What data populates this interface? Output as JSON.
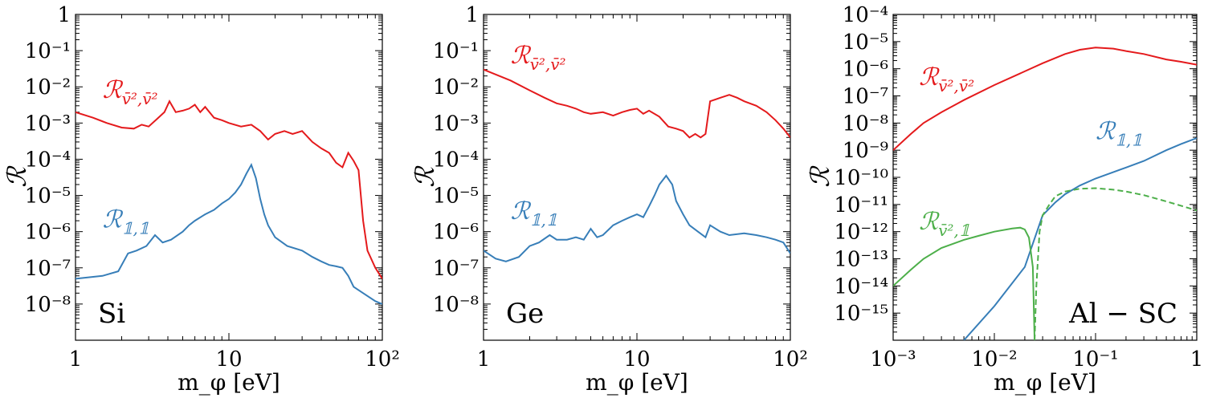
{
  "colors": {
    "red": "#e41a1c",
    "blue": "#377eb8",
    "green": "#4daf4a"
  },
  "chart_data": [
    {
      "type": "line",
      "id": "si",
      "xscale": "log",
      "yscale": "log",
      "xlim": [
        1,
        100
      ],
      "ylim": [
        1e-09,
        1
      ],
      "xlabel": "m_φ [eV]",
      "ylabel": "ℛ",
      "material": "Si",
      "xticks": [
        {
          "v": 1,
          "label": "1"
        },
        {
          "v": 10,
          "label": "10"
        },
        {
          "v": 100,
          "label": "10²"
        }
      ],
      "yticks": [
        {
          "v": 1,
          "label": "1"
        },
        {
          "v": 0.1,
          "label": "10⁻¹"
        },
        {
          "v": 0.01,
          "label": "10⁻²"
        },
        {
          "v": 0.001,
          "label": "10⁻³"
        },
        {
          "v": 0.0001,
          "label": "10⁻⁴"
        },
        {
          "v": 1e-05,
          "label": "10⁻⁵"
        },
        {
          "v": 1e-06,
          "label": "10⁻⁶"
        },
        {
          "v": 1e-07,
          "label": "10⁻⁷"
        },
        {
          "v": 1e-08,
          "label": "10⁻⁸"
        }
      ],
      "annotations": [
        {
          "text": "ℛ v̄²,v̄²",
          "color": "red",
          "x": 1.5,
          "y": 0.005
        },
        {
          "text": "ℛ 𝟙,𝟙",
          "color": "blue",
          "x": 1.5,
          "y": 1.3e-06
        }
      ],
      "series": [
        {
          "name": "ℛ v̄²,v̄²",
          "color": "red",
          "style": "solid",
          "points": [
            [
              1,
              0.002
            ],
            [
              1.3,
              0.0014
            ],
            [
              1.6,
              0.001
            ],
            [
              2,
              0.00075
            ],
            [
              2.4,
              0.0007
            ],
            [
              2.7,
              0.0009
            ],
            [
              3,
              0.0008
            ],
            [
              3.4,
              0.0013
            ],
            [
              3.8,
              0.002
            ],
            [
              4.1,
              0.004
            ],
            [
              4.5,
              0.002
            ],
            [
              5,
              0.0022
            ],
            [
              5.5,
              0.0025
            ],
            [
              6,
              0.0032
            ],
            [
              6.5,
              0.002
            ],
            [
              7,
              0.0028
            ],
            [
              8,
              0.0014
            ],
            [
              9,
              0.0012
            ],
            [
              10,
              0.001
            ],
            [
              12,
              0.0008
            ],
            [
              14,
              0.0009
            ],
            [
              16,
              0.0006
            ],
            [
              18,
              0.00035
            ],
            [
              20,
              0.0005
            ],
            [
              23,
              0.0006
            ],
            [
              26,
              0.0005
            ],
            [
              30,
              0.0006
            ],
            [
              35,
              0.0003
            ],
            [
              40,
              0.0002
            ],
            [
              45,
              0.00015
            ],
            [
              50,
              8e-05
            ],
            [
              55,
              6e-05
            ],
            [
              60,
              0.00015
            ],
            [
              65,
              9e-05
            ],
            [
              70,
              5e-05
            ],
            [
              75,
              2e-06
            ],
            [
              80,
              3e-07
            ],
            [
              90,
              1e-07
            ],
            [
              100,
              5e-08
            ]
          ]
        },
        {
          "name": "ℛ 𝟙,𝟙",
          "color": "blue",
          "style": "solid",
          "points": [
            [
              1,
              5e-08
            ],
            [
              1.5,
              6e-08
            ],
            [
              1.9,
              8e-08
            ],
            [
              2.2,
              2.5e-07
            ],
            [
              2.5,
              3e-07
            ],
            [
              2.9,
              4e-07
            ],
            [
              3.3,
              8e-07
            ],
            [
              3.7,
              5e-07
            ],
            [
              4.2,
              6e-07
            ],
            [
              5,
              1e-06
            ],
            [
              5.5,
              1.5e-06
            ],
            [
              6,
              2e-06
            ],
            [
              7,
              3e-06
            ],
            [
              8,
              4e-06
            ],
            [
              9,
              6e-06
            ],
            [
              10,
              8e-06
            ],
            [
              11,
              1.2e-05
            ],
            [
              12,
              2e-05
            ],
            [
              13,
              4e-05
            ],
            [
              14,
              7e-05
            ],
            [
              15,
              3e-05
            ],
            [
              16,
              8e-06
            ],
            [
              17,
              3e-06
            ],
            [
              18,
              1.5e-06
            ],
            [
              20,
              7e-07
            ],
            [
              24,
              4e-07
            ],
            [
              30,
              3e-07
            ],
            [
              35,
              2e-07
            ],
            [
              40,
              1.5e-07
            ],
            [
              45,
              1.2e-07
            ],
            [
              50,
              1.1e-07
            ],
            [
              55,
              1e-07
            ],
            [
              60,
              6e-08
            ],
            [
              65,
              3e-08
            ],
            [
              75,
              2e-08
            ],
            [
              90,
              1.2e-08
            ],
            [
              100,
              1e-08
            ]
          ]
        }
      ]
    },
    {
      "type": "line",
      "id": "ge",
      "xscale": "log",
      "yscale": "log",
      "xlim": [
        1,
        100
      ],
      "ylim": [
        1e-09,
        1
      ],
      "xlabel": "m_φ [eV]",
      "ylabel": "ℛ",
      "material": "Ge",
      "xticks": [
        {
          "v": 1,
          "label": "1"
        },
        {
          "v": 10,
          "label": "10"
        },
        {
          "v": 100,
          "label": "10²"
        }
      ],
      "yticks": [
        {
          "v": 1,
          "label": "1"
        },
        {
          "v": 0.1,
          "label": "10⁻¹"
        },
        {
          "v": 0.01,
          "label": "10⁻²"
        },
        {
          "v": 0.001,
          "label": "10⁻³"
        },
        {
          "v": 0.0001,
          "label": "10⁻⁴"
        },
        {
          "v": 1e-05,
          "label": "10⁻⁵"
        },
        {
          "v": 1e-06,
          "label": "10⁻⁶"
        },
        {
          "v": 1e-07,
          "label": "10⁻⁷"
        },
        {
          "v": 1e-08,
          "label": "10⁻⁸"
        }
      ],
      "annotations": [
        {
          "text": "ℛ v̄²,v̄²",
          "color": "red",
          "x": 1.5,
          "y": 0.045
        },
        {
          "text": "ℛ 𝟙,𝟙",
          "color": "blue",
          "x": 1.5,
          "y": 2.2e-06
        }
      ],
      "series": [
        {
          "name": "ℛ v̄²,v̄²",
          "color": "red",
          "style": "solid",
          "points": [
            [
              1,
              0.03
            ],
            [
              1.5,
              0.015
            ],
            [
              2,
              0.008
            ],
            [
              2.5,
              0.005
            ],
            [
              3,
              0.0035
            ],
            [
              3.5,
              0.003
            ],
            [
              4,
              0.0025
            ],
            [
              4.5,
              0.002
            ],
            [
              5,
              0.0018
            ],
            [
              6,
              0.002
            ],
            [
              7,
              0.0016
            ],
            [
              8,
              0.002
            ],
            [
              9,
              0.0023
            ],
            [
              10,
              0.0025
            ],
            [
              11,
              0.0018
            ],
            [
              12,
              0.0022
            ],
            [
              14,
              0.0015
            ],
            [
              16,
              0.0008
            ],
            [
              18,
              0.0007
            ],
            [
              20,
              0.0006
            ],
            [
              22,
              0.0004
            ],
            [
              24,
              0.0005
            ],
            [
              26,
              0.0004
            ],
            [
              28,
              0.0005
            ],
            [
              30,
              0.004
            ],
            [
              35,
              0.005
            ],
            [
              40,
              0.006
            ],
            [
              45,
              0.005
            ],
            [
              50,
              0.004
            ],
            [
              60,
              0.003
            ],
            [
              70,
              0.002
            ],
            [
              80,
              0.0012
            ],
            [
              90,
              0.0007
            ],
            [
              100,
              0.0004
            ]
          ]
        },
        {
          "name": "ℛ 𝟙,𝟙",
          "color": "blue",
          "style": "solid",
          "points": [
            [
              1,
              3e-07
            ],
            [
              1.2,
              1.8e-07
            ],
            [
              1.4,
              1.5e-07
            ],
            [
              1.7,
              2e-07
            ],
            [
              2,
              4e-07
            ],
            [
              2.3,
              5e-07
            ],
            [
              2.7,
              8e-07
            ],
            [
              3,
              6e-07
            ],
            [
              3.5,
              6e-07
            ],
            [
              4,
              7e-07
            ],
            [
              4.5,
              6e-07
            ],
            [
              5,
              1.2e-06
            ],
            [
              5.5,
              7e-07
            ],
            [
              6,
              8e-07
            ],
            [
              7,
              1.5e-06
            ],
            [
              8,
              2e-06
            ],
            [
              9,
              2.5e-06
            ],
            [
              10,
              3e-06
            ],
            [
              11,
              2.5e-06
            ],
            [
              12,
              5e-06
            ],
            [
              13,
              1e-05
            ],
            [
              14,
              2e-05
            ],
            [
              15.5,
              3.5e-05
            ],
            [
              17,
              2e-05
            ],
            [
              18,
              7e-06
            ],
            [
              20,
              3e-06
            ],
            [
              22,
              1.5e-06
            ],
            [
              25,
              1e-06
            ],
            [
              28,
              7e-07
            ],
            [
              30,
              1.5e-06
            ],
            [
              35,
              1e-06
            ],
            [
              40,
              8e-07
            ],
            [
              50,
              9e-07
            ],
            [
              60,
              8e-07
            ],
            [
              70,
              7e-07
            ],
            [
              80,
              6e-07
            ],
            [
              90,
              5e-07
            ],
            [
              100,
              2.5e-07
            ]
          ]
        }
      ]
    },
    {
      "type": "line",
      "id": "al",
      "xscale": "log",
      "yscale": "log",
      "xlim": [
        0.001,
        1
      ],
      "ylim": [
        1e-16,
        0.0001
      ],
      "xlabel": "m_φ [eV]",
      "ylabel": "ℛ",
      "material": "Al − SC",
      "xticks": [
        {
          "v": 0.001,
          "label": "10⁻³"
        },
        {
          "v": 0.01,
          "label": "10⁻²"
        },
        {
          "v": 0.1,
          "label": "10⁻¹"
        },
        {
          "v": 1,
          "label": "1"
        }
      ],
      "yticks": [
        {
          "v": 0.0001,
          "label": "10⁻⁴"
        },
        {
          "v": 1e-05,
          "label": "10⁻⁵"
        },
        {
          "v": 1e-06,
          "label": "10⁻⁶"
        },
        {
          "v": 1e-07,
          "label": "10⁻⁷"
        },
        {
          "v": 1e-08,
          "label": "10⁻⁸"
        },
        {
          "v": 1e-09,
          "label": "10⁻⁹"
        },
        {
          "v": 1e-10,
          "label": "10⁻¹⁰"
        },
        {
          "v": 1e-11,
          "label": "10⁻¹¹"
        },
        {
          "v": 1e-12,
          "label": "10⁻¹²"
        },
        {
          "v": 1e-13,
          "label": "10⁻¹³"
        },
        {
          "v": 1e-14,
          "label": "10⁻¹⁴"
        },
        {
          "v": 1e-15,
          "label": "10⁻¹⁵"
        }
      ],
      "annotations": [
        {
          "text": "ℛ v̄²,v̄²",
          "color": "red",
          "x": 0.0018,
          "y": 2.5e-07
        },
        {
          "text": "ℛ 𝟙,𝟙",
          "color": "blue",
          "x": 0.1,
          "y": 2.5e-09
        },
        {
          "text": "ℛ v̄²,𝟙",
          "color": "green",
          "x": 0.0018,
          "y": 1.2e-12
        }
      ],
      "series": [
        {
          "name": "ℛ v̄²,v̄²",
          "color": "red",
          "style": "solid",
          "points": [
            [
              0.001,
              1e-09
            ],
            [
              0.0015,
              4e-09
            ],
            [
              0.002,
              1e-08
            ],
            [
              0.003,
              2.5e-08
            ],
            [
              0.005,
              7e-08
            ],
            [
              0.01,
              2.5e-07
            ],
            [
              0.02,
              8e-07
            ],
            [
              0.03,
              1.6e-06
            ],
            [
              0.05,
              3.5e-06
            ],
            [
              0.07,
              5e-06
            ],
            [
              0.1,
              6e-06
            ],
            [
              0.15,
              5.5e-06
            ],
            [
              0.2,
              4.5e-06
            ],
            [
              0.3,
              3.5e-06
            ],
            [
              0.5,
              2.2e-06
            ],
            [
              0.7,
              1.8e-06
            ],
            [
              1,
              1.4e-06
            ]
          ]
        },
        {
          "name": "ℛ 𝟙,𝟙",
          "color": "blue",
          "style": "solid",
          "points": [
            [
              0.005,
              1e-16
            ],
            [
              0.01,
              1.8e-15
            ],
            [
              0.02,
              5e-14
            ],
            [
              0.03,
              4e-12
            ],
            [
              0.04,
              1.2e-11
            ],
            [
              0.05,
              2.4e-11
            ],
            [
              0.07,
              5e-11
            ],
            [
              0.1,
              9e-11
            ],
            [
              0.2,
              2.3e-10
            ],
            [
              0.3,
              4e-10
            ],
            [
              0.5,
              1e-09
            ],
            [
              0.7,
              1.7e-09
            ],
            [
              1,
              2.8e-09
            ]
          ]
        },
        {
          "name": "ℛ v̄²,𝟙",
          "color": "green",
          "style": "solid",
          "points": [
            [
              0.001,
              1e-14
            ],
            [
              0.0015,
              4e-14
            ],
            [
              0.002,
              1e-13
            ],
            [
              0.003,
              2.5e-13
            ],
            [
              0.005,
              5e-13
            ],
            [
              0.007,
              7e-13
            ],
            [
              0.01,
              1e-12
            ],
            [
              0.015,
              1.3e-12
            ],
            [
              0.018,
              1.4e-12
            ],
            [
              0.02,
              1.2e-12
            ],
            [
              0.022,
              6e-13
            ],
            [
              0.024,
              5e-14
            ],
            [
              0.025,
              1e-16
            ]
          ]
        },
        {
          "name": "ℛ v̄²,𝟙 (dashed)",
          "color": "green",
          "style": "dashed",
          "points": [
            [
              0.025,
              1e-16
            ],
            [
              0.026,
              1e-14
            ],
            [
              0.028,
              1e-12
            ],
            [
              0.03,
              4e-12
            ],
            [
              0.035,
              1e-11
            ],
            [
              0.04,
              2e-11
            ],
            [
              0.05,
              3e-11
            ],
            [
              0.07,
              3.8e-11
            ],
            [
              0.1,
              4e-11
            ],
            [
              0.15,
              3.5e-11
            ],
            [
              0.2,
              3e-11
            ],
            [
              0.3,
              2.2e-11
            ],
            [
              0.5,
              1.3e-11
            ],
            [
              0.7,
              9e-12
            ],
            [
              1,
              6e-12
            ]
          ]
        }
      ]
    }
  ]
}
